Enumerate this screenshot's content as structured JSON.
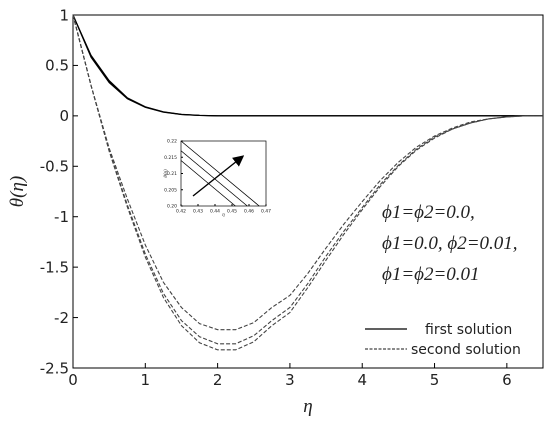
{
  "chart_data": [
    {
      "type": "line",
      "xlabel": "η",
      "ylabel": "θ(η)",
      "xlim": [
        0,
        6.5
      ],
      "ylim": [
        -2.5,
        1
      ],
      "xticks": [
        0,
        1,
        2,
        3,
        4,
        5,
        6
      ],
      "yticks": [
        1,
        0.5,
        0,
        -0.5,
        -1,
        -1.5,
        -2,
        -2.5
      ],
      "x": [
        0,
        0.25,
        0.5,
        0.75,
        1,
        1.25,
        1.5,
        1.75,
        2,
        2.25,
        2.5,
        2.75,
        3,
        3.25,
        3.5,
        3.75,
        4,
        4.25,
        4.5,
        4.75,
        5,
        5.25,
        5.5,
        5.75,
        6,
        6.25,
        6.5
      ],
      "series": [
        {
          "name": "first solution",
          "color": "#000000",
          "dash": false,
          "values": [
            1,
            0.6,
            0.35,
            0.18,
            0.09,
            0.04,
            0.015,
            0.005,
            0,
            0,
            0,
            0,
            0,
            0,
            0,
            0,
            0,
            0,
            0,
            0,
            0,
            0,
            0,
            0,
            0,
            0,
            0
          ]
        },
        {
          "color": "#000000",
          "dash": false,
          "values": [
            1,
            0.59,
            0.34,
            0.175,
            0.087,
            0.038,
            0.014,
            0.004,
            0,
            0,
            0,
            0,
            0,
            0,
            0,
            0,
            0,
            0,
            0,
            0,
            0,
            0,
            0,
            0,
            0,
            0,
            0
          ]
        },
        {
          "color": "#000000",
          "dash": false,
          "values": [
            1,
            0.58,
            0.33,
            0.17,
            0.084,
            0.036,
            0.013,
            0.004,
            0,
            0,
            0,
            0,
            0,
            0,
            0,
            0,
            0,
            0,
            0,
            0,
            0,
            0,
            0,
            0,
            0,
            0,
            0
          ]
        },
        {
          "name": "second solution",
          "color": "#444444",
          "dash": true,
          "values": [
            1,
            0.3,
            -0.35,
            -0.9,
            -1.4,
            -1.8,
            -2.08,
            -2.25,
            -2.32,
            -2.32,
            -2.24,
            -2.08,
            -1.95,
            -1.7,
            -1.43,
            -1.17,
            -0.93,
            -0.7,
            -0.5,
            -0.34,
            -0.22,
            -0.13,
            -0.07,
            -0.03,
            -0.01,
            0,
            0
          ]
        },
        {
          "color": "#444444",
          "dash": true,
          "values": [
            1,
            0.3,
            -0.34,
            -0.88,
            -1.37,
            -1.76,
            -2.03,
            -2.19,
            -2.26,
            -2.26,
            -2.18,
            -2.03,
            -1.9,
            -1.66,
            -1.39,
            -1.14,
            -0.91,
            -0.68,
            -0.49,
            -0.33,
            -0.21,
            -0.13,
            -0.07,
            -0.03,
            -0.01,
            0,
            0
          ]
        },
        {
          "color": "#444444",
          "dash": true,
          "values": [
            1,
            0.3,
            -0.32,
            -0.82,
            -1.28,
            -1.65,
            -1.9,
            -2.06,
            -2.12,
            -2.12,
            -2.05,
            -1.9,
            -1.78,
            -1.56,
            -1.31,
            -1.07,
            -0.85,
            -0.64,
            -0.46,
            -0.31,
            -0.2,
            -0.12,
            -0.06,
            -0.03,
            -0.01,
            0,
            0
          ]
        }
      ],
      "annotations": [
        "ϕ1=ϕ2=0.0,",
        "ϕ1=0.0, ϕ2=0.01,",
        "ϕ1=ϕ2=0.01"
      ]
    },
    {
      "type": "line",
      "xlabel": "η",
      "ylabel": "θ(η)",
      "xlim": [
        0.42,
        0.47
      ],
      "ylim": [
        0.2,
        0.22
      ],
      "xticks": [
        0.42,
        0.43,
        0.44,
        0.45,
        0.46,
        0.47
      ],
      "yticks": [
        0.22,
        0.215,
        0.21,
        0.205,
        {
          "value": 0.2,
          "label": "0.20"
        }
      ],
      "series": [
        {
          "color": "#000000",
          "dash": false,
          "x": [
            0.42,
            0.452
          ],
          "values": [
            0.214,
            0.2
          ]
        },
        {
          "color": "#000000",
          "dash": false,
          "x": [
            0.42,
            0.459
          ],
          "values": [
            0.217,
            0.2
          ]
        },
        {
          "color": "#000000",
          "dash": false,
          "x": [
            0.42,
            0.466
          ],
          "values": [
            0.22,
            0.2
          ]
        }
      ]
    }
  ]
}
